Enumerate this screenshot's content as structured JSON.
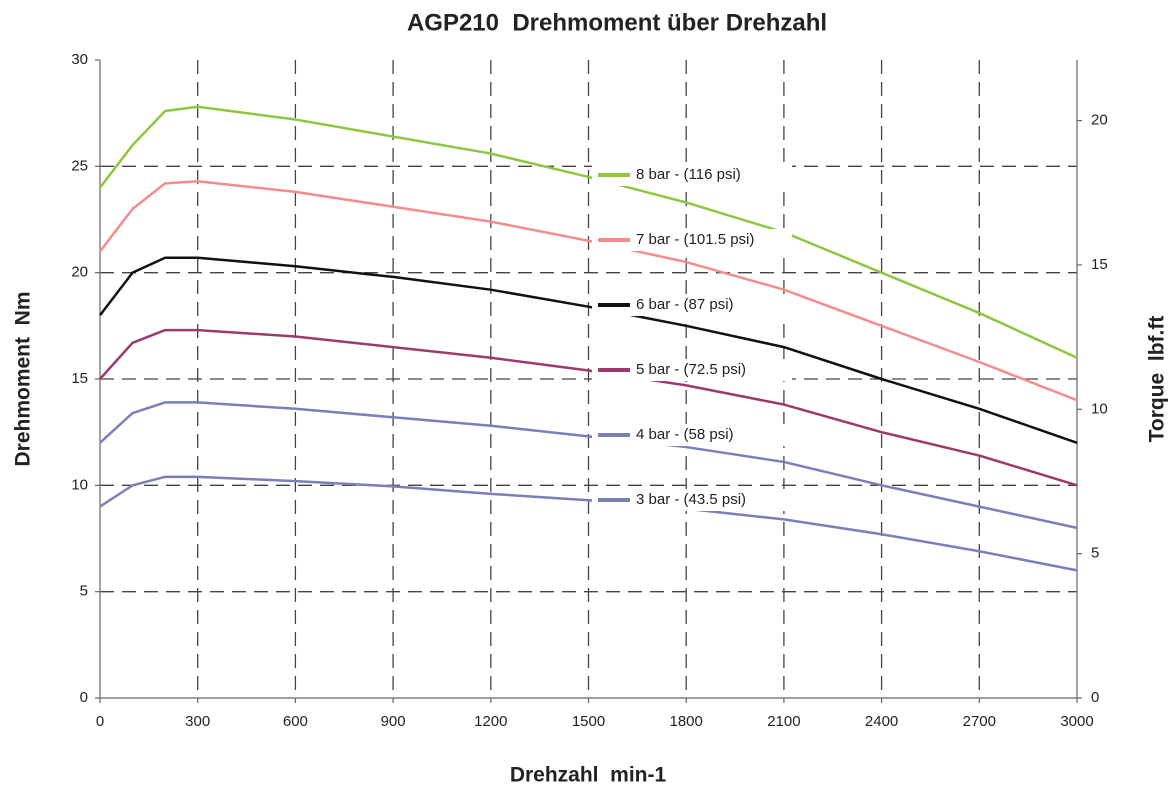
{
  "chart_data": {
    "type": "line",
    "title": "AGP210  Drehmoment über Drehzahl",
    "x_label": "Drehzahl  min-1",
    "y_label": "Drehmoment  Nm",
    "y2_label": "Torque  lbf.ft",
    "x": [
      0,
      100,
      200,
      300,
      600,
      900,
      1200,
      1500,
      1800,
      2100,
      2400,
      2700,
      3000
    ],
    "series": [
      {
        "name": "8 bar - (116 psi)",
        "color": "#8dc63f",
        "values": [
          24,
          26,
          27.6,
          27.8,
          27.2,
          26.4,
          25.6,
          24.5,
          23.3,
          21.9,
          20,
          18.1,
          16
        ]
      },
      {
        "name": "7 bar - (101.5 psi)",
        "color": "#f58c8c",
        "values": [
          21,
          23,
          24.2,
          24.3,
          23.8,
          23.1,
          22.4,
          21.5,
          20.5,
          19.2,
          17.5,
          15.8,
          14
        ]
      },
      {
        "name": "6 bar - (87 psi)",
        "color": "#111111",
        "values": [
          18,
          20,
          20.7,
          20.7,
          20.3,
          19.8,
          19.2,
          18.4,
          17.5,
          16.5,
          15,
          13.6,
          12
        ]
      },
      {
        "name": "5 bar - (72.5 psi)",
        "color": "#9c3a6e",
        "values": [
          15,
          16.7,
          17.3,
          17.3,
          17,
          16.5,
          16,
          15.4,
          14.7,
          13.8,
          12.5,
          11.4,
          10
        ]
      },
      {
        "name": "4 bar - (58 psi)",
        "color": "#7b7fb8",
        "values": [
          12,
          13.4,
          13.9,
          13.9,
          13.6,
          13.2,
          12.8,
          12.3,
          11.8,
          11.1,
          10,
          9,
          8
        ]
      },
      {
        "name": "3 bar - (43.5 psi)",
        "color": "#7b7fb8",
        "values": [
          9,
          10,
          10.4,
          10.4,
          10.2,
          9.95,
          9.6,
          9.3,
          8.9,
          8.4,
          7.7,
          6.9,
          6
        ]
      }
    ],
    "xlim": [
      0,
      3000
    ],
    "xticks": [
      0,
      300,
      600,
      900,
      1200,
      1500,
      1800,
      2100,
      2400,
      2700,
      3000
    ],
    "ylim": [
      0,
      30
    ],
    "yticks": [
      0,
      5,
      10,
      15,
      20,
      25,
      30
    ],
    "y2lim": [
      0,
      22.1
    ],
    "y2ticks": [
      0,
      5,
      10,
      15,
      20
    ],
    "grid": true
  }
}
